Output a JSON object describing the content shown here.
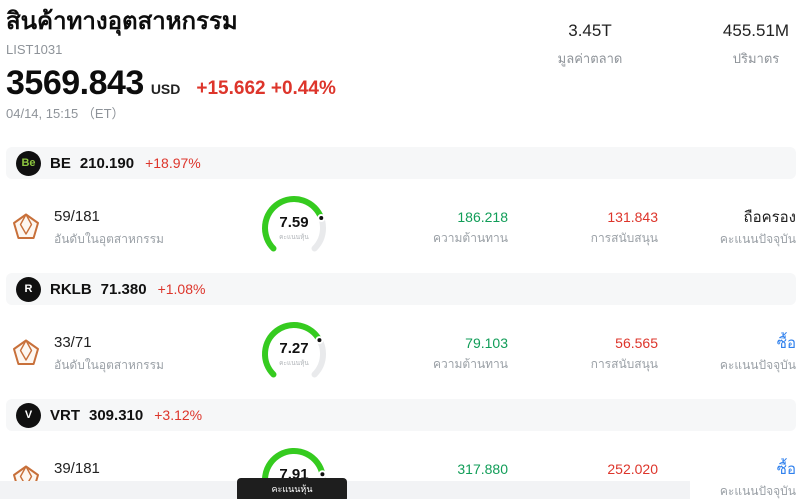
{
  "colors": {
    "red": "#dd352b",
    "green": "#119d58",
    "gauge-green": "#35cb1f",
    "blue": "#2f80ed",
    "track": "#e9eaec",
    "pill-bg": "#f6f7f8",
    "icon-orange": "#c8703a"
  },
  "header": {
    "title": "สินค้าทางอุตสาหกรรม",
    "list_id": "LIST1031",
    "price": "3569.843",
    "currency": "USD",
    "change": "+15.662 +0.44%",
    "timestamp": "04/14, 15:15 （ET）",
    "stats": [
      {
        "value": "3.45T",
        "label": "มูลค่าตลาด"
      },
      {
        "value": "455.51M",
        "label": "ปริมาตร"
      }
    ]
  },
  "labels": {
    "rank": "อันดับในอุตสาหกรรม",
    "score": "คะแนนหุ้น",
    "resistance": "ความต้านทาน",
    "support": "การสนับสนุน",
    "signal": "คะแนนปัจจุบัน"
  },
  "gauge_tooltip": "คะแนนหุ้น",
  "stocks": [
    {
      "ticker": "BE",
      "logo_glyph": "Be",
      "logo_color": "#8dc63f",
      "price": "210.190",
      "change": "+18.97%",
      "rank": "59/181",
      "score": 7.59,
      "score_display": "7.59",
      "resistance": "186.218",
      "support": "131.843",
      "signal": "ถือครอง",
      "signal_color": "#1c1c1c"
    },
    {
      "ticker": "RKLB",
      "logo_glyph": "R",
      "logo_color": "#ffffff",
      "price": "71.380",
      "change": "+1.08%",
      "rank": "33/71",
      "score": 7.27,
      "score_display": "7.27",
      "resistance": "79.103",
      "support": "56.565",
      "signal": "ซื้อ",
      "signal_color": "#2f80ed"
    },
    {
      "ticker": "VRT",
      "logo_glyph": "V",
      "logo_color": "#ffffff",
      "price": "309.310",
      "change": "+3.12%",
      "rank": "39/181",
      "score": 7.91,
      "score_display": "7.91",
      "resistance": "317.880",
      "support": "252.020",
      "signal": "ซื้อ",
      "signal_color": "#2f80ed"
    }
  ]
}
